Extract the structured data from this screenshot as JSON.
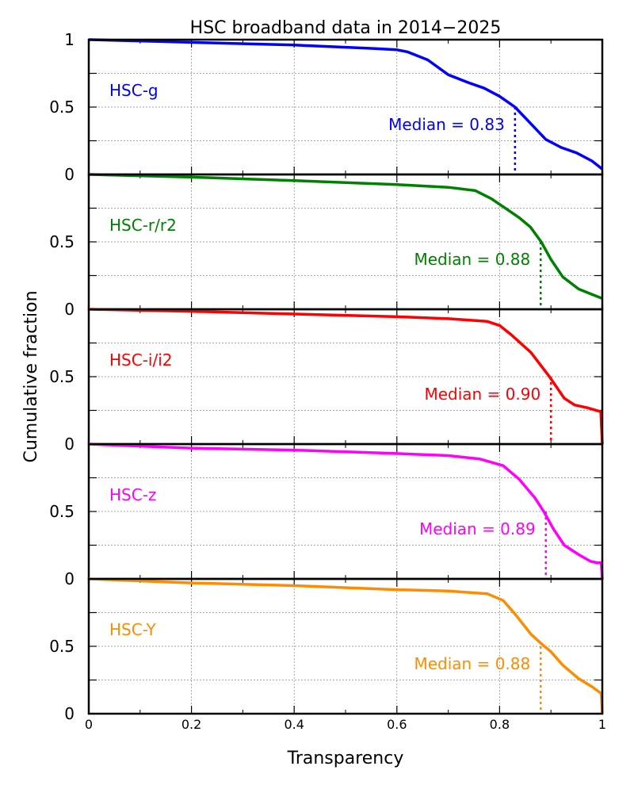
{
  "chart_data": {
    "type": "line",
    "title": "HSC broadband data in 2014−2025",
    "xlabel": "Transparency",
    "ylabel": "Cumulative fraction",
    "xlim": [
      0,
      1
    ],
    "ylim": [
      0,
      1
    ],
    "grid": true,
    "x_ticks": [
      "0",
      "0.2",
      "0.4",
      "0.6",
      "0.8",
      "1"
    ],
    "x_tick_values": [
      0,
      0.2,
      0.4,
      0.6,
      0.8,
      1
    ],
    "x_minor_tick_values": [
      0.1,
      0.3,
      0.5,
      0.7,
      0.9
    ],
    "y_ticks": [
      "0",
      "0.5",
      "1"
    ],
    "y_tick_values": [
      0,
      0.5,
      1
    ],
    "y_grid_values": [
      0.25,
      0.5,
      0.75
    ],
    "panels": [
      {
        "name": "HSC-g",
        "color": "#0000ff",
        "median": 0.83,
        "median_label": "Median = 0.83",
        "x": [
          0,
          0.2,
          0.4,
          0.55,
          0.6,
          0.62,
          0.66,
          0.7,
          0.74,
          0.77,
          0.8,
          0.83,
          0.86,
          0.89,
          0.92,
          0.95,
          0.98,
          1.0
        ],
        "y": [
          1.0,
          0.98,
          0.96,
          0.935,
          0.925,
          0.91,
          0.85,
          0.74,
          0.68,
          0.64,
          0.58,
          0.5,
          0.38,
          0.26,
          0.2,
          0.16,
          0.1,
          0.04
        ]
      },
      {
        "name": "HSC-r/r2",
        "color": "#008000",
        "median": 0.88,
        "median_label": "Median = 0.88",
        "x": [
          0,
          0.2,
          0.4,
          0.6,
          0.7,
          0.753,
          0.784,
          0.815,
          0.838,
          0.86,
          0.881,
          0.9,
          0.923,
          0.954,
          0.98,
          1.0
        ],
        "y": [
          1.0,
          0.98,
          0.955,
          0.925,
          0.905,
          0.88,
          0.82,
          0.74,
          0.68,
          0.61,
          0.5,
          0.37,
          0.24,
          0.15,
          0.11,
          0.08
        ],
        "final_drop": false
      },
      {
        "name": "HSC-i/i2",
        "color": "#ff0000",
        "median": 0.9,
        "median_label": "Median = 0.90",
        "x": [
          0,
          0.2,
          0.4,
          0.6,
          0.7,
          0.776,
          0.8,
          0.823,
          0.861,
          0.897,
          0.926,
          0.946,
          0.97,
          0.997,
          1.0
        ],
        "y": [
          1.0,
          0.985,
          0.965,
          0.945,
          0.93,
          0.91,
          0.88,
          0.81,
          0.68,
          0.5,
          0.34,
          0.29,
          0.27,
          0.24,
          0.0
        ]
      },
      {
        "name": "HSC-z",
        "color": "#ff00ff",
        "median": 0.89,
        "median_label": "Median = 0.89",
        "x": [
          0,
          0.2,
          0.4,
          0.6,
          0.7,
          0.761,
          0.807,
          0.838,
          0.869,
          0.886,
          0.905,
          0.926,
          0.954,
          0.977,
          0.99,
          0.998,
          1.0
        ],
        "y": [
          1.0,
          0.97,
          0.955,
          0.93,
          0.915,
          0.89,
          0.84,
          0.74,
          0.6,
          0.5,
          0.37,
          0.25,
          0.18,
          0.13,
          0.12,
          0.12,
          0.0
        ]
      },
      {
        "name": "HSC-Y",
        "color": "#ff8c00",
        "median": 0.88,
        "median_label": "Median = 0.88",
        "x": [
          0,
          0.2,
          0.4,
          0.6,
          0.7,
          0.776,
          0.807,
          0.83,
          0.861,
          0.881,
          0.9,
          0.923,
          0.954,
          0.98,
          0.998,
          1.0
        ],
        "y": [
          1.0,
          0.97,
          0.95,
          0.92,
          0.91,
          0.89,
          0.84,
          0.74,
          0.59,
          0.52,
          0.46,
          0.36,
          0.26,
          0.2,
          0.15,
          0.0
        ]
      }
    ]
  }
}
